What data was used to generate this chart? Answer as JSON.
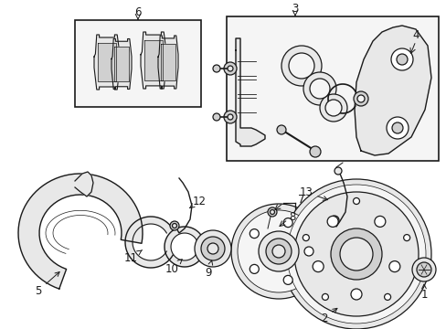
{
  "bg_color": "#ffffff",
  "fig_width": 4.89,
  "fig_height": 3.6,
  "dpi": 100,
  "lc": "#1a1a1a",
  "fc_light": "#f5f5f5",
  "fc_med": "#e8e8e8",
  "fc_dark": "#d0d0d0",
  "lw": 0.9,
  "fs": 8.5
}
